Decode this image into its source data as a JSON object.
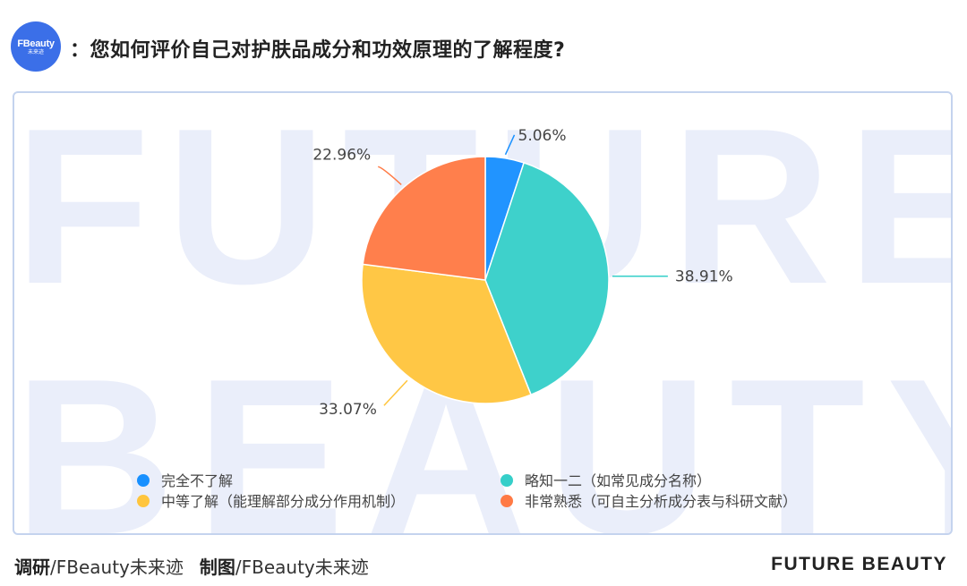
{
  "header": {
    "logo_text": "FBeauty",
    "logo_subtext": "未来迹",
    "question": "：您如何评价自己对护肤品成分和功效原理的了解程度?"
  },
  "watermark": {
    "line1": "FUTURE",
    "line2": "BEAUTY"
  },
  "chart_data": {
    "type": "pie",
    "title": "",
    "start_angle_deg": 0,
    "direction": "clockwise",
    "legend_position": "bottom",
    "slices": [
      {
        "label": "完全不了解",
        "value": 5.06,
        "display": "5.06%",
        "color": "#1890ff"
      },
      {
        "label": "略知一二（如常见成分名称）",
        "value": 38.91,
        "display": "38.91%",
        "color": "#36cfc9"
      },
      {
        "label": "中等了解（能理解部分成分作用机制）",
        "value": 33.07,
        "display": "33.07%",
        "color": "#ffc53d"
      },
      {
        "label": "非常熟悉（可自主分析成分表与科研文献）",
        "value": 22.96,
        "display": "22.96%",
        "color": "#ff7a45"
      }
    ],
    "legend_order": [
      0,
      1,
      2,
      3
    ]
  },
  "footer": {
    "survey_label": "调研",
    "survey_source": "/FBeauty未来迹",
    "chart_label": "制图",
    "chart_source": "/FBeauty未来迹",
    "brand": "FUTURE BEAUTY"
  }
}
